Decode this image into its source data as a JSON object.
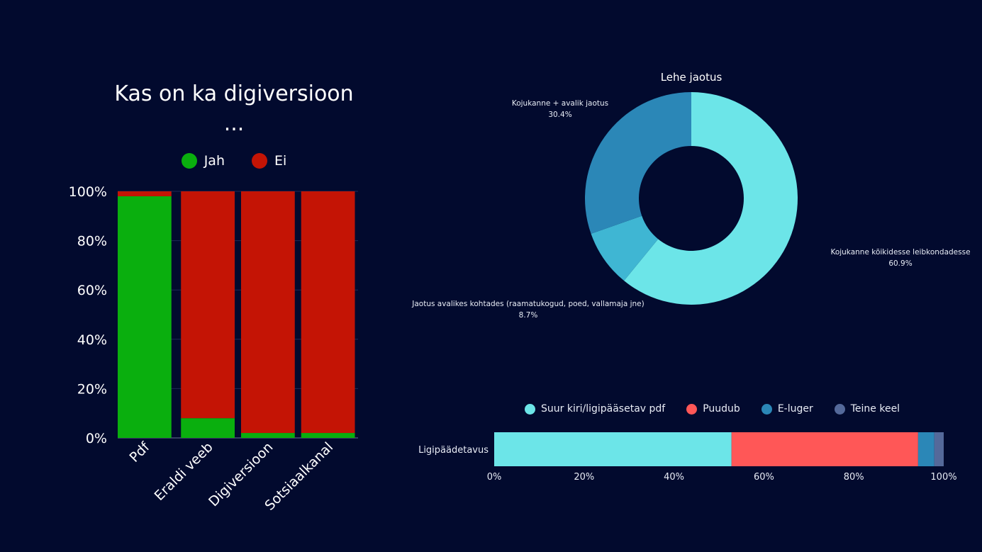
{
  "background_color": "#020a2e",
  "chart_data": [
    {
      "type": "bar",
      "stacked": true,
      "normalized": true,
      "title": "Kas on ka digiversioon",
      "title_suffix": "...",
      "categories": [
        "Pdf",
        "Eraldi veeb",
        "Digiversioon",
        "Sotsiaalkanal"
      ],
      "series": [
        {
          "name": "Jah",
          "color": "#0aaf0e",
          "values": [
            98,
            8,
            2,
            2
          ]
        },
        {
          "name": "Ei",
          "color": "#c41405",
          "values": [
            2,
            92,
            98,
            98
          ]
        }
      ],
      "xlabel": "",
      "ylabel": "",
      "ylim": [
        0,
        100
      ],
      "yticks": [
        "0%",
        "20%",
        "40%",
        "60%",
        "80%",
        "100%"
      ],
      "grid": true,
      "legend_position": "top"
    },
    {
      "type": "pie",
      "donut": true,
      "title": "Lehe jaotus",
      "slices": [
        {
          "label": "Kojukanne kõikidesse leibkondadesse",
          "value": 60.9,
          "display": "60.9%",
          "color": "#6ce5e8"
        },
        {
          "label": "Jaotus avalikes kohtades (raamatukogud, poed, vallamaja jne)",
          "value": 8.7,
          "display": "8.7%",
          "color": "#3fb6d3"
        },
        {
          "label": "Kojukanne + avalik jaotus",
          "value": 30.4,
          "display": "30.4%",
          "color": "#2b87b7"
        }
      ]
    },
    {
      "type": "bar",
      "orientation": "horizontal",
      "stacked": true,
      "normalized": true,
      "categories": [
        "Ligipäädetavus"
      ],
      "series": [
        {
          "name": "Suur kiri/ligipääsetav pdf",
          "color": "#6ce5e8",
          "values": [
            52.8
          ]
        },
        {
          "name": "Puudub",
          "color": "#ff5757",
          "values": [
            41.5
          ]
        },
        {
          "name": "E-luger",
          "color": "#2b87b7",
          "values": [
            3.6
          ]
        },
        {
          "name": "Teine keel",
          "color": "#54699a",
          "values": [
            2.1
          ]
        }
      ],
      "xlim": [
        0,
        100
      ],
      "xticks": [
        "0%",
        "20%",
        "40%",
        "60%",
        "80%",
        "100%"
      ],
      "legend_position": "top"
    }
  ]
}
